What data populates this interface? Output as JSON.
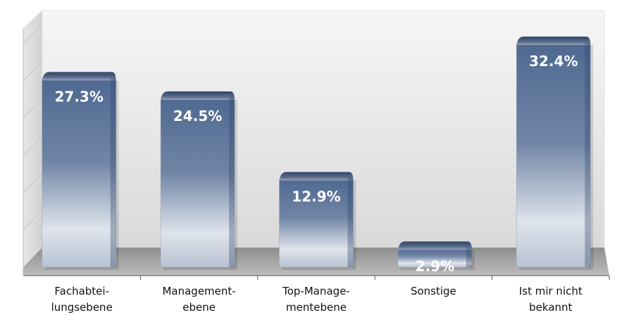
{
  "chart_data": {
    "type": "bar3d",
    "categories": [
      "Fachabtei-\nlungsebene",
      "Management-\nebene",
      "Top-Manage-\nmentebene",
      "Sonstige",
      "Ist mir nicht\nbekannt"
    ],
    "values": [
      27.3,
      24.5,
      12.9,
      2.9,
      32.4
    ],
    "value_labels": [
      "27.3%",
      "24.5%",
      "12.9%",
      "2.9%",
      "32.4%"
    ],
    "color": "#4a6389"
  }
}
